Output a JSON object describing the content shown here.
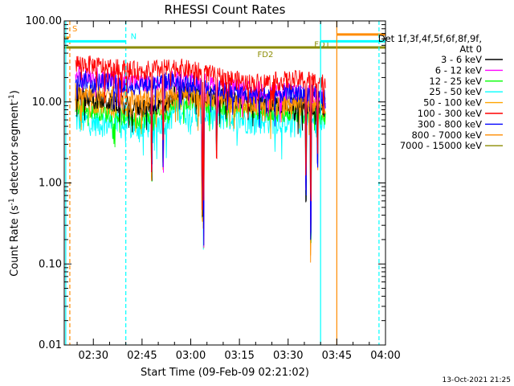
{
  "chart_data": {
    "type": "line",
    "title": "RHESSI Count Rates",
    "xlabel": "Start Time (09-Feb-09 02:21:02)",
    "ylabel": "Count Rate (s⁻¹ detector segment⁻¹)",
    "ylabel_parts": [
      "Count Rate (s",
      "-1",
      " detector segment",
      "-1",
      ")"
    ],
    "yscale": "log",
    "ylim": [
      0.01,
      100
    ],
    "xlim": [
      "02:21:02",
      "04:00:00"
    ],
    "x_ticks": [
      "02:30",
      "02:45",
      "03:00",
      "03:15",
      "03:30",
      "03:45",
      "04:00"
    ],
    "y_ticks": [
      {
        "value": 0.01,
        "label": "0.01"
      },
      {
        "value": 0.1,
        "label": "0.10"
      },
      {
        "value": 1,
        "label": "1.00"
      },
      {
        "value": 10,
        "label": "10.00"
      },
      {
        "value": 100,
        "label": "100.00"
      }
    ],
    "legend_header": [
      "Det 1f,3f,4f,5f,6f,8f,9f,",
      "Att 0"
    ],
    "legend_position": "right",
    "grid": false,
    "data_start": "02:24:30",
    "data_end": "03:41:30",
    "series": [
      {
        "name": "3 - 6 keV",
        "color": "#000000",
        "approx_level": [
          [
            0,
            12
          ],
          [
            0.25,
            8.5
          ],
          [
            0.37,
            9.5
          ],
          [
            0.4,
            14
          ],
          [
            0.7,
            10
          ],
          [
            0.92,
            9
          ],
          [
            1,
            8
          ]
        ]
      },
      {
        "name": "6 - 12 keV",
        "color": "#ff00ff",
        "approx_level": [
          [
            0,
            22
          ],
          [
            0.25,
            17
          ],
          [
            0.37,
            17
          ],
          [
            0.4,
            20
          ],
          [
            0.7,
            14
          ],
          [
            0.92,
            13
          ],
          [
            1,
            12
          ]
        ]
      },
      {
        "name": "12 - 25 keV",
        "color": "#00ff00",
        "approx_level": [
          [
            0,
            9
          ],
          [
            0.25,
            6
          ],
          [
            0.37,
            7
          ],
          [
            0.4,
            11
          ],
          [
            0.7,
            8
          ],
          [
            0.92,
            7
          ],
          [
            1,
            6.5
          ]
        ]
      },
      {
        "name": "25 - 50 keV",
        "color": "#00ffff",
        "approx_level": [
          [
            0,
            6
          ],
          [
            0.25,
            5
          ],
          [
            0.37,
            6
          ],
          [
            0.4,
            8
          ],
          [
            0.7,
            6
          ],
          [
            0.92,
            6
          ],
          [
            1,
            5.5
          ]
        ]
      },
      {
        "name": "50 - 100 keV",
        "color": "#ffa500",
        "approx_level": [
          [
            0,
            10
          ],
          [
            0.25,
            8
          ],
          [
            0.37,
            9
          ],
          [
            0.4,
            12
          ],
          [
            0.7,
            9
          ],
          [
            0.92,
            9
          ],
          [
            1,
            8
          ]
        ]
      },
      {
        "name": "100 - 300 keV",
        "color": "#ff0000",
        "approx_level": [
          [
            0,
            30
          ],
          [
            0.25,
            24
          ],
          [
            0.37,
            26
          ],
          [
            0.4,
            27
          ],
          [
            0.7,
            17
          ],
          [
            0.92,
            19
          ],
          [
            1,
            17
          ]
        ]
      },
      {
        "name": "300 - 800 keV",
        "color": "#0000ff",
        "approx_level": [
          [
            0,
            19
          ],
          [
            0.25,
            16
          ],
          [
            0.37,
            18
          ],
          [
            0.4,
            18
          ],
          [
            0.7,
            12
          ],
          [
            0.92,
            13
          ],
          [
            1,
            11
          ]
        ]
      },
      {
        "name": "800 - 7000 keV",
        "color": "#ff8c00",
        "approx_level": [
          [
            0,
            14
          ],
          [
            0.25,
            11
          ],
          [
            0.37,
            12
          ],
          [
            0.4,
            13
          ],
          [
            0.7,
            10
          ],
          [
            0.92,
            10
          ],
          [
            1,
            9
          ]
        ]
      },
      {
        "name": "7000 - 15000 keV",
        "color": "#8b8b00",
        "approx_level": []
      }
    ],
    "dips": [
      {
        "time": "02:48:00",
        "min": 1.0
      },
      {
        "time": "02:51:30",
        "min": 1.3
      },
      {
        "time": "03:03:30",
        "min": 0.3
      },
      {
        "time": "03:04:00",
        "min": 0.15
      },
      {
        "time": "03:08:00",
        "min": 2.0
      },
      {
        "time": "03:35:30",
        "min": 0.5
      },
      {
        "time": "03:37:00",
        "min": 0.1
      },
      {
        "time": "03:39:00",
        "min": 1.2
      }
    ],
    "annotations": [
      {
        "label": "S",
        "color": "#ff8c00",
        "y": 62,
        "x_from": "02:21:02",
        "x_to": "02:22:30",
        "vline": "02:22:45",
        "vline_style": "dashed"
      },
      {
        "label": "N",
        "color": "#00ffff",
        "y": 56,
        "x_from": "02:21:02",
        "x_to": "02:40:00",
        "vline": "02:40:00",
        "vline_style": "dashed"
      },
      {
        "label": "FD2",
        "color": "#8b8b00",
        "y": 47,
        "x_from": "02:21:02",
        "x_to": "04:00:00",
        "label_at": "03:23:00"
      },
      {
        "label": "FD1",
        "color": "#8b8b00",
        "y": 47,
        "x_from": "03:36:00",
        "x_to": "04:00:00",
        "label_at": "03:40:30"
      },
      {
        "label": "",
        "color": "#00ffff",
        "y": 56,
        "x_from": "03:40:00",
        "x_to": "04:00:00",
        "vline": "03:40:00",
        "vline_style": "solid"
      },
      {
        "label": "",
        "color": "#ff8c00",
        "y": 68,
        "x_from": "03:45:00",
        "x_to": "04:00:00",
        "vline": "03:45:00",
        "vline_style": "solid"
      },
      {
        "label": "",
        "color": "#00ffff",
        "vline": "02:21:30",
        "vline_style": "solid"
      },
      {
        "label": "",
        "color": "#00ffff",
        "vline": "03:58:00",
        "vline_style": "dashed"
      }
    ]
  },
  "footer": {
    "timestamp": "13-Oct-2021 21:25"
  }
}
